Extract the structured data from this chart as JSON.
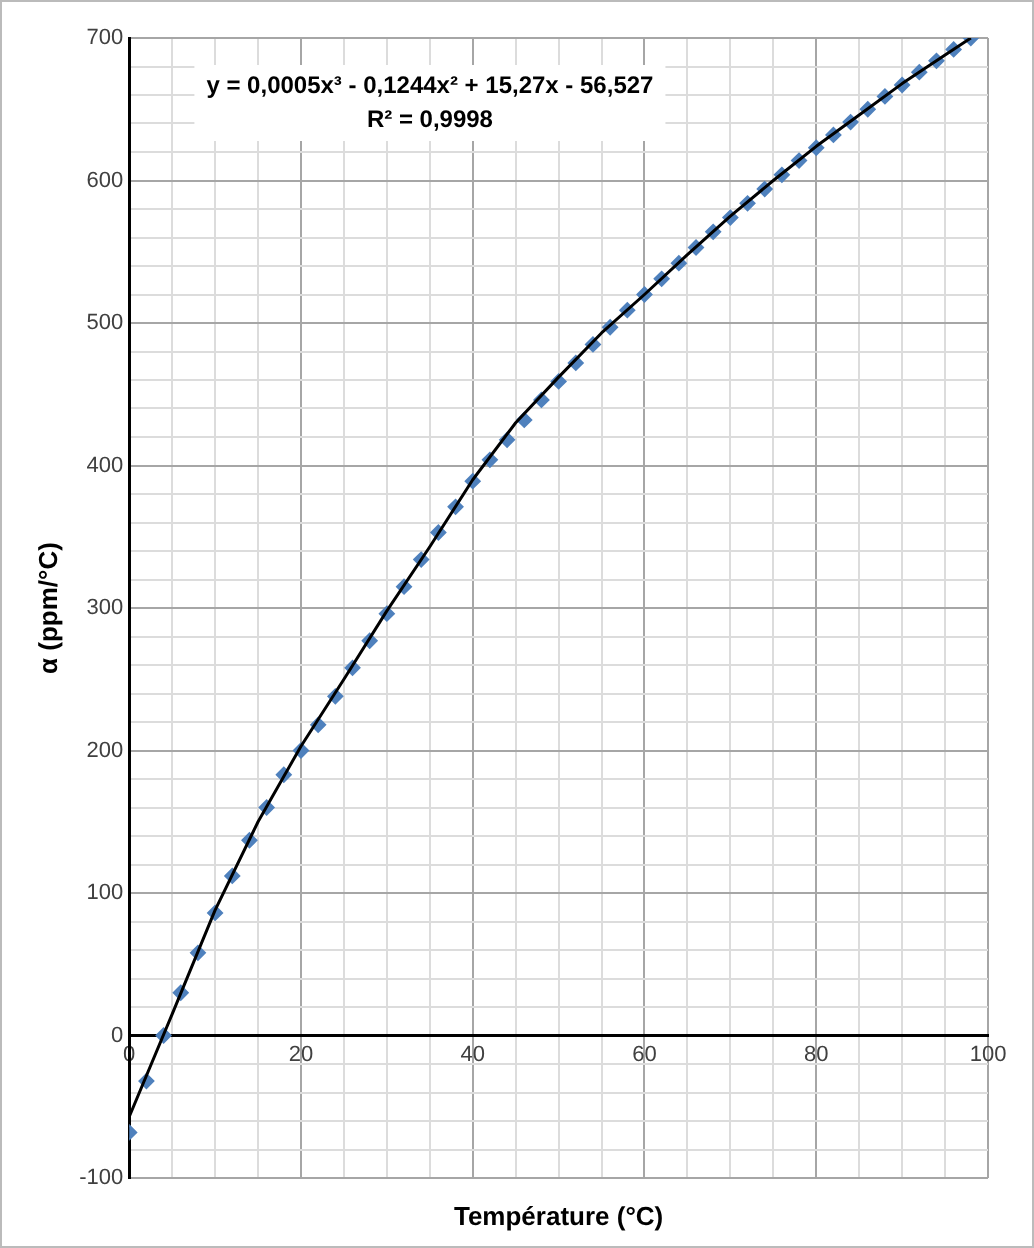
{
  "chart_data": {
    "type": "scatter",
    "xlabel": "Température (°C)",
    "ylabel": "α (ppm/°C)",
    "annotations": [
      "y = 0,0005x³ - 0,1244x² + 15,27x - 56,527",
      "R² = 0,9998"
    ],
    "series": [
      {
        "color": "#4f81bd",
        "marker": "diamond",
        "x": [
          0,
          2,
          4,
          6,
          8,
          10,
          12,
          14,
          16,
          18,
          20,
          22,
          24,
          26,
          28,
          30,
          32,
          34,
          36,
          38,
          40,
          42,
          44,
          46,
          48,
          50,
          52,
          54,
          56,
          58,
          60,
          62,
          64,
          66,
          68,
          70,
          72,
          74,
          76,
          78,
          80,
          82,
          84,
          86,
          88,
          90,
          92,
          94,
          96,
          98
        ],
        "values": [
          -68,
          -32,
          0,
          30,
          58,
          86,
          112,
          137,
          160,
          183,
          200,
          218,
          238,
          258,
          277,
          296,
          315,
          334,
          353,
          371,
          389,
          404,
          418,
          432,
          446,
          459,
          472,
          485,
          497,
          509,
          520,
          531,
          542,
          553,
          564,
          574,
          584,
          594,
          604,
          614,
          623,
          632,
          641,
          650,
          659,
          667,
          676,
          684,
          692,
          700
        ]
      },
      {
        "type": "line",
        "color": "#000000",
        "marker": "none",
        "x": [
          0,
          5,
          10,
          15,
          20,
          25,
          30,
          35,
          40,
          45,
          50,
          55,
          60,
          65,
          70,
          75,
          80,
          85,
          90,
          95,
          98
        ],
        "values": [
          -57,
          15,
          88,
          150,
          203,
          250,
          298,
          343,
          390,
          430,
          462,
          493,
          520,
          548,
          575,
          600,
          624,
          646,
          668,
          688,
          700
        ]
      }
    ],
    "xlim": [
      0,
      100
    ],
    "ylim": [
      -100,
      700
    ],
    "xticks": [
      0,
      {
        "value": 5,
        "label": null
      },
      {
        "value": 10,
        "label": null
      },
      {
        "value": 15,
        "label": null
      },
      20,
      {
        "value": 25,
        "label": null
      },
      {
        "value": 30,
        "label": null
      },
      {
        "value": 35,
        "label": null
      },
      40,
      {
        "value": 45,
        "label": null
      },
      {
        "value": 50,
        "label": null
      },
      {
        "value": 55,
        "label": null
      },
      60,
      {
        "value": 65,
        "label": null
      },
      {
        "value": 70,
        "label": null
      },
      {
        "value": 75,
        "label": null
      },
      80,
      {
        "value": 85,
        "label": null
      },
      {
        "value": 90,
        "label": null
      },
      {
        "value": 95,
        "label": null
      },
      100
    ],
    "yticks": [
      -100,
      {
        "value": -80,
        "label": null
      },
      {
        "value": -60,
        "label": null
      },
      {
        "value": -40,
        "label": null
      },
      {
        "value": -20,
        "label": null
      },
      0,
      {
        "value": 20,
        "label": null
      },
      {
        "value": 40,
        "label": null
      },
      {
        "value": 60,
        "label": null
      },
      {
        "value": 80,
        "label": null
      },
      100,
      {
        "value": 120,
        "label": null
      },
      {
        "value": 140,
        "label": null
      },
      {
        "value": 160,
        "label": null
      },
      {
        "value": 180,
        "label": null
      },
      200,
      {
        "value": 220,
        "label": null
      },
      {
        "value": 240,
        "label": null
      },
      {
        "value": 260,
        "label": null
      },
      {
        "value": 280,
        "label": null
      },
      300,
      {
        "value": 320,
        "label": null
      },
      {
        "value": 340,
        "label": null
      },
      {
        "value": 360,
        "label": null
      },
      {
        "value": 380,
        "label": null
      },
      400,
      {
        "value": 420,
        "label": null
      },
      {
        "value": 440,
        "label": null
      },
      {
        "value": 460,
        "label": null
      },
      {
        "value": 480,
        "label": null
      },
      500,
      {
        "value": 520,
        "label": null
      },
      {
        "value": 540,
        "label": null
      },
      {
        "value": 560,
        "label": null
      },
      {
        "value": 580,
        "label": null
      },
      600,
      {
        "value": 620,
        "label": null
      },
      {
        "value": 640,
        "label": null
      },
      {
        "value": 660,
        "label": null
      },
      {
        "value": 680,
        "label": null
      },
      700
    ],
    "grid": true,
    "legend": false
  }
}
